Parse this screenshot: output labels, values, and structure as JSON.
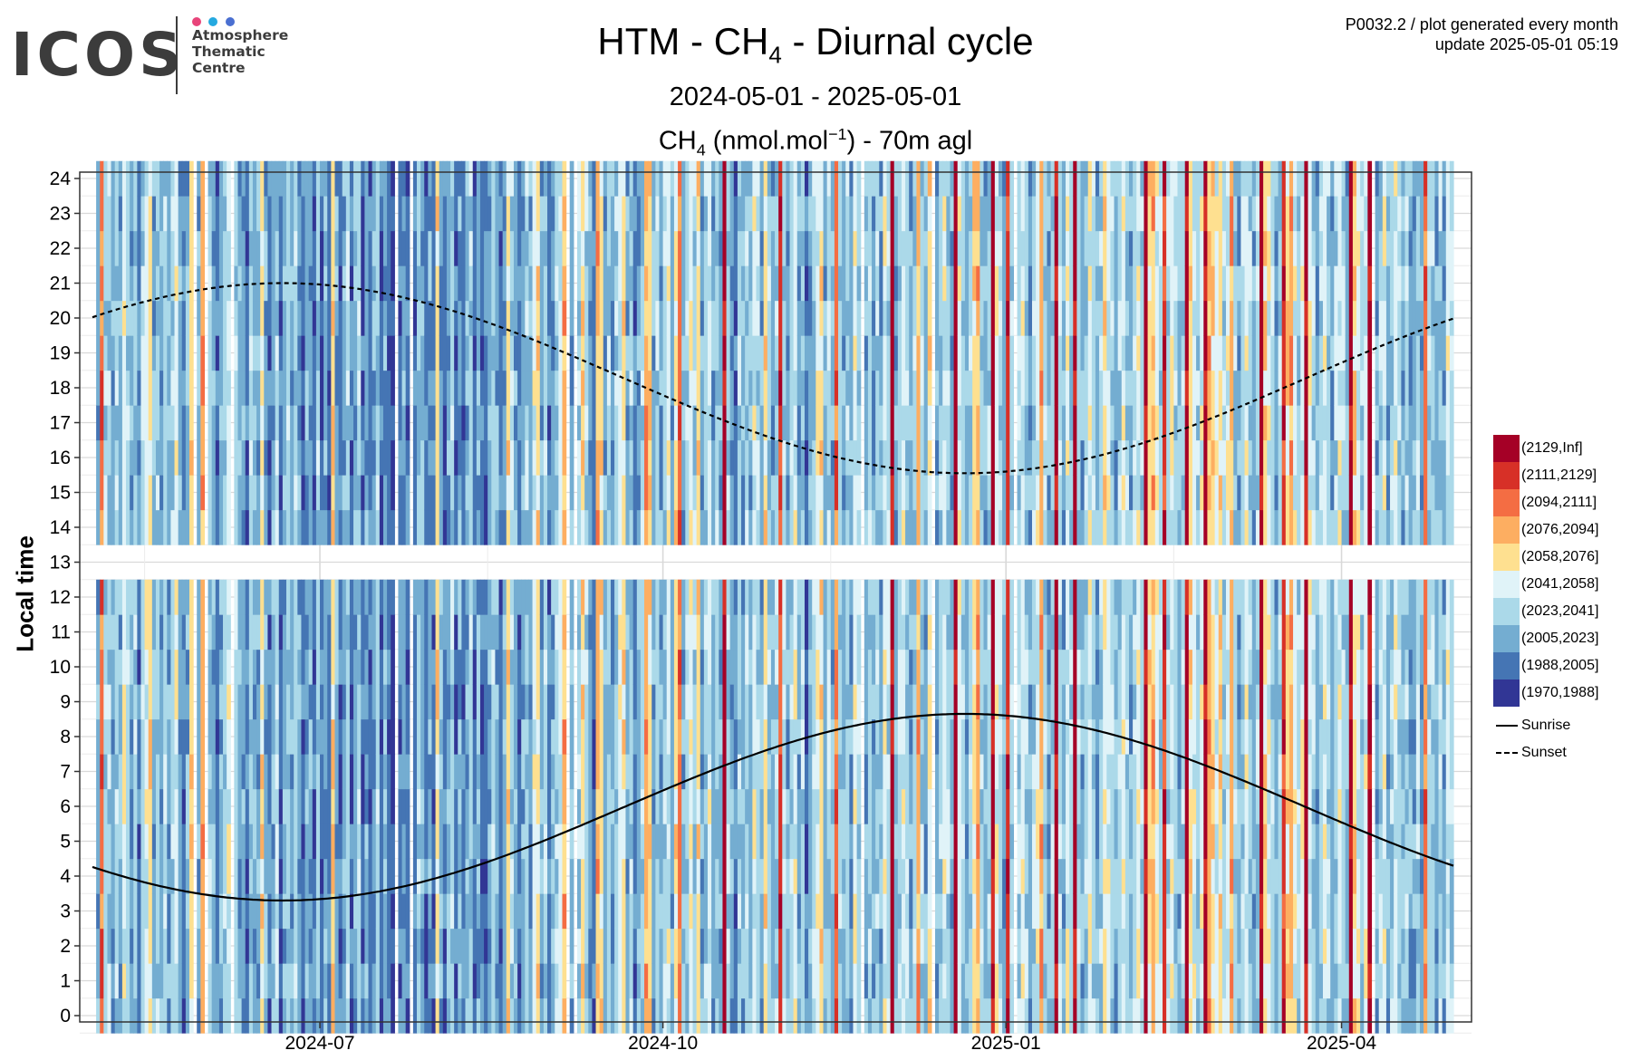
{
  "logo": {
    "word": "ICOS",
    "line1": "Atmosphere",
    "line2": "Thematic",
    "line3": "Centre",
    "dot_colors": [
      "#e8447a",
      "#25a9e0",
      "#4a6fd1"
    ]
  },
  "meta": {
    "line1": "P0032.2 / plot generated every month",
    "line2": "update  2025-05-01 05:19"
  },
  "title": {
    "pre": "HTM - CH",
    "sub": "4",
    "post": " - Diurnal cycle"
  },
  "date_range": "2024-05-01 - 2025-05-01",
  "subtitle": {
    "pre": "CH",
    "sub": "4",
    "mid": " (nmol.mol",
    "sup": "−1",
    "post": ") - 70m agl"
  },
  "chart_data": {
    "type": "heatmap",
    "x_start": "2024-05-01",
    "x_end": "2025-05-01",
    "x_ticks": [
      "2024-07",
      "2024-10",
      "2025-01",
      "2025-04"
    ],
    "y_ticks": [
      0,
      1,
      2,
      3,
      4,
      5,
      6,
      7,
      8,
      9,
      10,
      11,
      12,
      13,
      14,
      15,
      16,
      17,
      18,
      19,
      20,
      21,
      22,
      23,
      24
    ],
    "ylabel": "Local time",
    "ylim": [
      0,
      24
    ],
    "missing_hours": [
      13
    ],
    "grid": true,
    "legend_position": "right",
    "bins": [
      {
        "label": "(2129,Inf]",
        "color": "#a50026"
      },
      {
        "label": "(2111,2129]",
        "color": "#d73027"
      },
      {
        "label": "(2094,2111]",
        "color": "#f46d43"
      },
      {
        "label": "(2076,2094]",
        "color": "#fdae61"
      },
      {
        "label": "(2058,2076]",
        "color": "#fee090"
      },
      {
        "label": "(2041,2058]",
        "color": "#e0f3f8"
      },
      {
        "label": "(2023,2041]",
        "color": "#abd9e9"
      },
      {
        "label": "(2005,2023]",
        "color": "#74add1"
      },
      {
        "label": "(1988,2005]",
        "color": "#4575b4"
      },
      {
        "label": "(1970,1988]",
        "color": "#313695"
      }
    ],
    "daily_level": [
      6,
      7,
      2,
      6,
      6,
      7,
      6,
      7,
      5,
      6,
      7,
      6,
      8,
      6,
      5,
      4,
      7,
      6,
      7,
      6,
      7,
      6,
      5,
      7,
      8,
      7,
      4,
      6,
      7,
      3,
      7,
      6,
      7,
      8,
      7,
      6,
      5,
      7,
      6,
      7,
      7,
      8,
      6,
      7,
      7,
      4,
      7,
      8,
      7,
      6,
      8,
      7,
      6,
      7,
      6,
      7,
      8,
      7,
      7,
      8,
      6,
      8,
      7,
      8,
      4,
      7,
      8,
      7,
      6,
      8,
      7,
      6,
      8,
      7,
      8,
      7,
      6,
      8,
      7,
      8,
      9,
      6,
      8,
      7,
      8,
      7,
      8,
      6,
      7,
      8,
      7,
      8,
      4,
      7,
      8,
      7,
      6,
      8,
      7,
      8,
      7,
      6,
      8,
      7,
      8,
      8,
      7,
      6,
      7,
      8,
      7,
      4,
      6,
      7,
      8,
      7,
      6,
      7,
      5,
      4,
      7,
      6,
      8,
      7,
      6,
      5,
      3,
      6,
      7,
      7,
      6,
      4,
      6,
      7,
      8,
      3,
      4,
      7,
      6,
      7,
      6,
      5,
      4,
      7,
      6,
      8,
      7,
      6,
      3,
      4,
      7,
      6,
      7,
      6,
      5,
      7,
      4,
      2,
      7,
      6,
      5,
      6,
      4,
      7,
      6,
      5,
      7,
      6,
      7,
      0,
      6,
      7,
      8,
      6,
      7,
      6,
      7,
      5,
      6,
      7,
      4,
      6,
      7,
      6,
      1,
      6,
      7,
      6,
      5,
      7,
      6,
      8,
      7,
      6,
      5,
      4,
      7,
      6,
      7,
      2,
      6,
      7,
      6,
      7,
      5,
      6,
      4,
      7,
      6,
      7,
      6,
      7,
      5,
      6,
      0,
      7,
      6,
      5,
      6,
      7,
      6,
      3,
      6,
      7,
      4,
      6,
      7,
      6,
      5,
      6,
      7,
      0,
      5,
      6,
      7,
      6,
      4,
      3,
      6,
      7,
      6,
      0,
      5,
      6,
      7,
      1,
      6,
      7,
      6,
      5,
      6,
      7,
      6,
      5,
      3,
      6,
      7,
      6,
      0,
      6,
      7,
      5,
      6,
      0,
      6,
      7,
      6,
      5,
      6,
      7,
      6,
      4,
      5,
      6,
      7,
      6,
      5,
      6,
      7,
      6,
      5,
      6,
      0,
      4,
      3,
      5,
      6,
      1,
      6,
      5,
      6,
      7,
      6,
      0,
      4,
      5,
      6,
      5,
      0,
      3,
      4,
      5,
      4,
      6,
      5,
      3,
      6,
      7,
      6,
      5,
      6,
      7,
      6,
      0,
      4,
      5,
      6,
      7,
      6,
      1,
      4,
      3,
      5,
      6,
      5,
      0,
      5,
      6,
      7,
      6,
      5,
      6,
      7,
      6,
      5,
      6,
      7,
      0,
      4,
      5,
      6,
      5,
      0,
      6,
      7,
      6,
      5,
      7,
      6,
      5,
      6,
      7,
      6,
      7,
      7
    ],
    "sunrise_hours": [
      4.4,
      3.3,
      8.65,
      4.4
    ],
    "sunset_hours": [
      19.8,
      21.0,
      15.55,
      19.7
    ]
  }
}
